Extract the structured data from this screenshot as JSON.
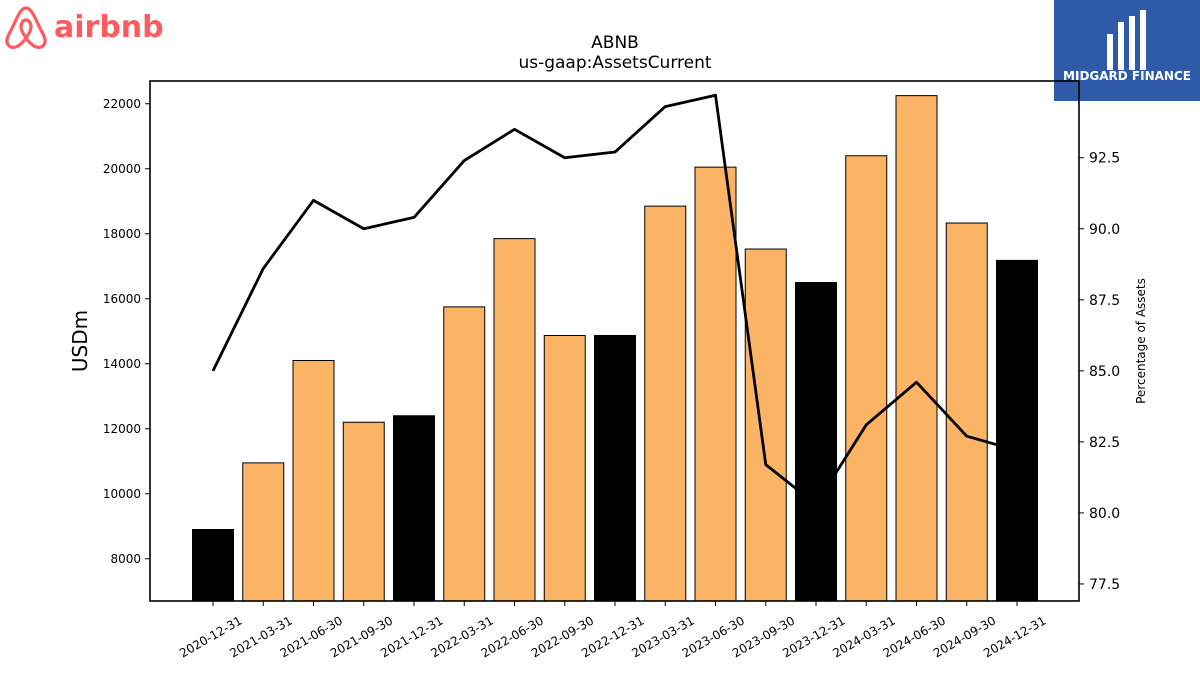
{
  "branding": {
    "company_logo_text": "airbnb",
    "company_logo_color": "#ff5a5f",
    "publisher_logo_text": "MIDGARD FINANCE",
    "publisher_logo_bg": "#2e5aa8"
  },
  "chart_data": {
    "type": "bar",
    "title": "ABNB",
    "subtitle": "us-gaap:AssetsCurrent",
    "ylabel": "USDm",
    "y2label": "Percentage of Assets",
    "ylim": [
      6700,
      22700
    ],
    "y2lim": [
      76.9,
      95.2
    ],
    "yticks": [
      8000,
      10000,
      12000,
      14000,
      16000,
      18000,
      20000,
      22000
    ],
    "y2ticks": [
      "77.5",
      "80.0",
      "82.5",
      "85.0",
      "87.5",
      "90.0",
      "92.5"
    ],
    "categories": [
      "2020-12-31",
      "2021-03-31",
      "2021-06-30",
      "2021-09-30",
      "2021-12-31",
      "2022-03-31",
      "2022-06-30",
      "2022-09-30",
      "2022-12-31",
      "2023-03-31",
      "2023-06-30",
      "2023-09-30",
      "2023-12-31",
      "2024-03-31",
      "2024-06-30",
      "2024-09-30",
      "2024-12-31"
    ],
    "series": [
      {
        "values": [
          8900,
          10950,
          14100,
          12200,
          12400,
          15750,
          17850,
          14870,
          14870,
          18850,
          20050,
          17530,
          16500,
          20400,
          22250,
          18330,
          17180
        ],
        "colors": [
          "#000000",
          "#fbb365",
          "#fbb365",
          "#fbb365",
          "#000000",
          "#fbb365",
          "#fbb365",
          "#fbb365",
          "#000000",
          "#fbb365",
          "#fbb365",
          "#fbb365",
          "#000000",
          "#fbb365",
          "#fbb365",
          "#fbb365",
          "#000000"
        ]
      },
      {
        "type": "line",
        "axis": "right",
        "color": "#000000",
        "values": [
          85.0,
          88.6,
          91.0,
          90.0,
          90.4,
          92.4,
          93.5,
          92.5,
          92.7,
          94.3,
          94.7,
          81.7,
          80.3,
          83.1,
          84.6,
          82.7,
          82.2
        ]
      }
    ],
    "grid": false
  }
}
